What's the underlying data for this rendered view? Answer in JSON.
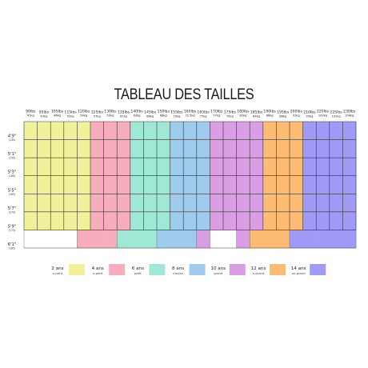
{
  "title": "TABLEAU DES TAILLES",
  "chart_data": {
    "type": "heatmap",
    "title": "TABLEAU DES TAILLES",
    "weights": [
      {
        "lbs": "90lbs",
        "kg": "41kg"
      },
      {
        "lbs": "95lbs",
        "kg": "43kg"
      },
      {
        "lbs": "105lbs",
        "kg": "48kg"
      },
      {
        "lbs": "115lbs",
        "kg": "52kg"
      },
      {
        "lbs": "120lbs",
        "kg": "54kg"
      },
      {
        "lbs": "125lbs",
        "kg": "57kg"
      },
      {
        "lbs": "130lbs",
        "kg": "59kg"
      },
      {
        "lbs": "135lbs",
        "kg": "61kg"
      },
      {
        "lbs": "140lbs",
        "kg": "63kg"
      },
      {
        "lbs": "145lbs",
        "kg": "66kg"
      },
      {
        "lbs": "150lbs",
        "kg": "68kg"
      },
      {
        "lbs": "155lbs",
        "kg": "70kg"
      },
      {
        "lbs": "160lbs",
        "kg": "72.5kg"
      },
      {
        "lbs": "165lbs",
        "kg": "75kg"
      },
      {
        "lbs": "170lbs",
        "kg": "77kg"
      },
      {
        "lbs": "175lbs",
        "kg": "79kg"
      },
      {
        "lbs": "180lbs",
        "kg": "82kg"
      },
      {
        "lbs": "185lbs",
        "kg": "84kg"
      },
      {
        "lbs": "190lbs",
        "kg": "86kg"
      },
      {
        "lbs": "195lbs",
        "kg": "88kg"
      },
      {
        "lbs": "200lbs",
        "kg": "91kg"
      },
      {
        "lbs": "210lbs",
        "kg": "95kg"
      },
      {
        "lbs": "220lbs",
        "kg": "100kg"
      },
      {
        "lbs": "225lbs",
        "kg": "102kg"
      },
      {
        "lbs": "230lbs",
        "kg": "104kg"
      }
    ],
    "heights": [
      {
        "ft": "4'9\"",
        "cm": "(145)"
      },
      {
        "ft": "5'1\"",
        "cm": "(155)"
      },
      {
        "ft": "5'3\"",
        "cm": "(160)"
      },
      {
        "ft": "5'5\"",
        "cm": "(165)"
      },
      {
        "ft": "5'7\"",
        "cm": "(170)"
      },
      {
        "ft": "5'9\"",
        "cm": "(175)"
      },
      {
        "ft": "6'1\"",
        "cm": "(185)"
      }
    ],
    "sizes": [
      {
        "label": "2 ans",
        "sub": "x-petit",
        "color": "#f1f19b"
      },
      {
        "label": "4 ans",
        "sub": "x-petit",
        "color": "#f7adbb"
      },
      {
        "label": "6 ans",
        "sub": "petit",
        "color": "#9fe8d6"
      },
      {
        "label": "8 ans",
        "sub": "moyen",
        "color": "#9fcbec"
      },
      {
        "label": "10 ans",
        "sub": "grand",
        "color": "#d99ee4"
      },
      {
        "label": "12 ans",
        "sub": "x-grand",
        "color": "#fdbb73"
      },
      {
        "label": "14 ans",
        "sub": "xx-grand",
        "color": "#a09bf7"
      }
    ],
    "upper_rows": [
      [
        0,
        0,
        0,
        0,
        0,
        1,
        1,
        1,
        2,
        2,
        2,
        3,
        3,
        3,
        4,
        4,
        4,
        4,
        5,
        5,
        5,
        6,
        6,
        6,
        6
      ],
      [
        0,
        0,
        0,
        0,
        0,
        1,
        1,
        1,
        2,
        2,
        2,
        3,
        3,
        3,
        4,
        4,
        4,
        4,
        5,
        5,
        5,
        6,
        6,
        6,
        6
      ],
      [
        0,
        0,
        0,
        0,
        0,
        1,
        1,
        1,
        2,
        2,
        2,
        3,
        3,
        3,
        4,
        4,
        4,
        4,
        5,
        5,
        5,
        6,
        6,
        6,
        6
      ],
      [
        0,
        0,
        0,
        0,
        0,
        1,
        1,
        1,
        2,
        2,
        2,
        3,
        3,
        3,
        4,
        4,
        4,
        4,
        5,
        5,
        5,
        6,
        6,
        6,
        6
      ],
      [
        0,
        0,
        0,
        0,
        0,
        1,
        1,
        1,
        2,
        2,
        2,
        3,
        3,
        3,
        4,
        4,
        4,
        4,
        5,
        5,
        5,
        6,
        6,
        6,
        6
      ],
      [
        0,
        0,
        0,
        0,
        0,
        1,
        1,
        1,
        2,
        2,
        2,
        3,
        3,
        3,
        4,
        4,
        4,
        4,
        5,
        5,
        5,
        6,
        6,
        6,
        6
      ]
    ],
    "bottom_row": [
      null,
      null,
      null,
      null,
      1,
      1,
      1,
      2,
      2,
      2,
      3,
      3,
      3,
      4,
      null,
      null,
      4,
      5,
      5,
      5,
      6,
      6,
      6,
      6,
      6
    ]
  }
}
